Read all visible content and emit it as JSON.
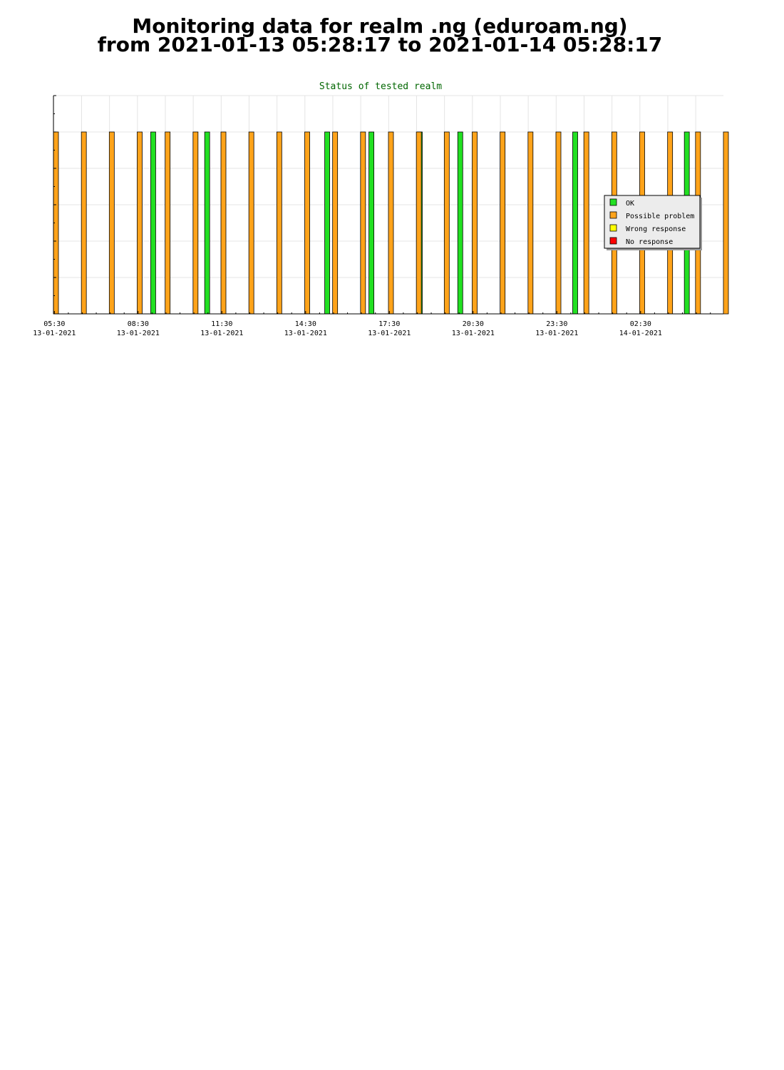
{
  "header": {
    "line1": "Monitoring data for realm .ng  (eduroam.ng)",
    "line2": "from 2021-01-13 05:28:17 to 2021-01-14 05:28:17"
  },
  "chart_data": {
    "type": "bar",
    "title": "Status of tested realm",
    "xlabel": "",
    "ylabel": "",
    "x_range": [
      "2021-01-13 05:28",
      "2021-01-14 05:28"
    ],
    "ylim": [
      0,
      6
    ],
    "grid": true,
    "legend_placement": "right",
    "x_ticks": [
      {
        "time": "2021-01-13 05:30",
        "label1": "05:30",
        "label2": "13-01-2021"
      },
      {
        "time": "2021-01-13 08:30",
        "label1": "08:30",
        "label2": "13-01-2021"
      },
      {
        "time": "2021-01-13 11:30",
        "label1": "11:30",
        "label2": "13-01-2021"
      },
      {
        "time": "2021-01-13 14:30",
        "label1": "14:30",
        "label2": "13-01-2021"
      },
      {
        "time": "2021-01-13 17:30",
        "label1": "17:30",
        "label2": "13-01-2021"
      },
      {
        "time": "2021-01-13 20:30",
        "label1": "20:30",
        "label2": "13-01-2021"
      },
      {
        "time": "2021-01-13 23:30",
        "label1": "23:30",
        "label2": "13-01-2021"
      },
      {
        "time": "2021-01-14 02:30",
        "label1": "02:30",
        "label2": "14-01-2021"
      }
    ],
    "series": [
      {
        "name": "OK",
        "color": "#22e022",
        "points": [
          {
            "time": "2021-01-13 08:57",
            "value": 5
          },
          {
            "time": "2021-01-13 10:53",
            "value": 5
          },
          {
            "time": "2021-01-13 15:11",
            "value": 5
          },
          {
            "time": "2021-01-13 16:46",
            "value": 5
          },
          {
            "time": "2021-01-13 18:30",
            "value": 5
          },
          {
            "time": "2021-01-13 19:57",
            "value": 5
          },
          {
            "time": "2021-01-14 00:04",
            "value": 5
          },
          {
            "time": "2021-01-14 04:04",
            "value": 5
          }
        ]
      },
      {
        "name": "Possible problem",
        "color": "#ffa31a",
        "points": [
          {
            "time": "2021-01-13 05:28",
            "value": 5
          },
          {
            "time": "2021-01-13 06:28",
            "value": 5
          },
          {
            "time": "2021-01-13 07:28",
            "value": 5
          },
          {
            "time": "2021-01-13 08:28",
            "value": 5
          },
          {
            "time": "2021-01-13 09:28",
            "value": 5
          },
          {
            "time": "2021-01-13 10:28",
            "value": 5
          },
          {
            "time": "2021-01-13 11:28",
            "value": 5
          },
          {
            "time": "2021-01-13 12:28",
            "value": 5
          },
          {
            "time": "2021-01-13 13:28",
            "value": 5
          },
          {
            "time": "2021-01-13 14:28",
            "value": 5
          },
          {
            "time": "2021-01-13 15:28",
            "value": 5
          },
          {
            "time": "2021-01-13 16:28",
            "value": 5
          },
          {
            "time": "2021-01-13 17:28",
            "value": 5
          },
          {
            "time": "2021-01-13 18:28",
            "value": 5
          },
          {
            "time": "2021-01-13 19:28",
            "value": 5
          },
          {
            "time": "2021-01-13 20:28",
            "value": 5
          },
          {
            "time": "2021-01-13 21:28",
            "value": 5
          },
          {
            "time": "2021-01-13 22:28",
            "value": 5
          },
          {
            "time": "2021-01-13 23:28",
            "value": 5
          },
          {
            "time": "2021-01-14 00:28",
            "value": 5
          },
          {
            "time": "2021-01-14 01:28",
            "value": 5
          },
          {
            "time": "2021-01-14 02:28",
            "value": 5
          },
          {
            "time": "2021-01-14 03:28",
            "value": 5
          },
          {
            "time": "2021-01-14 04:28",
            "value": 5
          },
          {
            "time": "2021-01-14 05:28",
            "value": 5
          }
        ]
      },
      {
        "name": "Wrong response",
        "color": "#ffff00",
        "points": []
      },
      {
        "name": "No response",
        "color": "#ff0000",
        "points": []
      }
    ]
  }
}
